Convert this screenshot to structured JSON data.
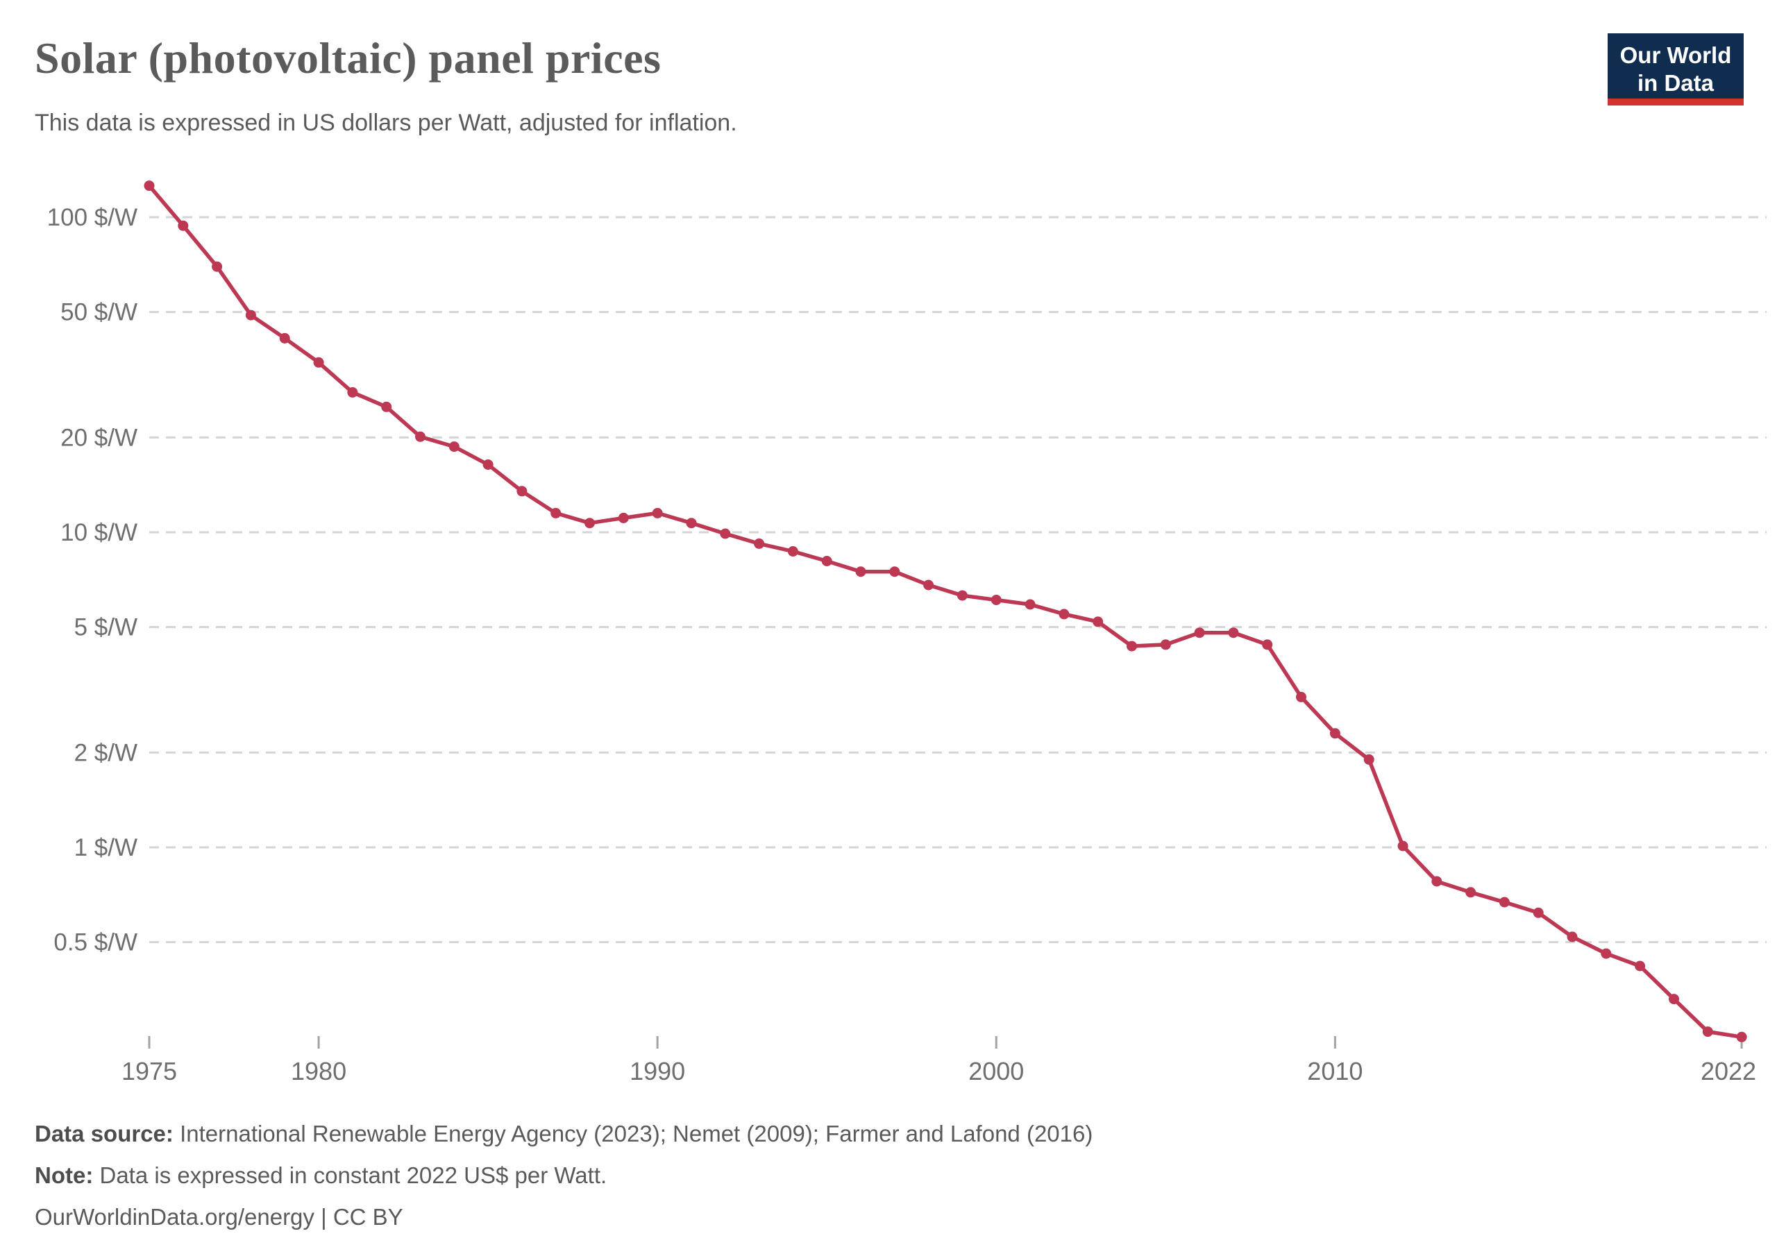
{
  "header": {
    "title": "Solar (photovoltaic) panel prices",
    "subtitle": "This data is expressed in US dollars per Watt, adjusted for inflation.",
    "logo": {
      "line1": "Our World",
      "line2": "in Data",
      "bg_color": "#102d50",
      "stripe_color": "#d0342c"
    }
  },
  "chart_data": {
    "type": "line",
    "title": "Solar (photovoltaic) panel prices",
    "ylabel": "US$ per Watt (constant 2022 US$)",
    "yscale": "log",
    "grid": "horizontal-dashed",
    "legend_position": "none",
    "xlim": [
      1975,
      2022
    ],
    "ylim": [
      0.25,
      130
    ],
    "xticks": {
      "values": [
        1975,
        1980,
        1990,
        2000,
        2010,
        2022
      ],
      "labels": [
        "1975",
        "1980",
        "1990",
        "2000",
        "2010",
        "2022"
      ]
    },
    "yticks": {
      "values": [
        100,
        50,
        20,
        10,
        5,
        2,
        1,
        0.5
      ],
      "labels": [
        "100 $/W",
        "50 $/W",
        "20 $/W",
        "10 $/W",
        "5 $/W",
        "2 $/W",
        "1 $/W",
        "0.5 $/W"
      ]
    },
    "series": [
      {
        "name": "Solar photovoltaic module price",
        "color": "#bd3853",
        "x": [
          1975,
          1976,
          1977,
          1978,
          1979,
          1980,
          1981,
          1982,
          1983,
          1984,
          1985,
          1986,
          1987,
          1988,
          1989,
          1990,
          1991,
          1992,
          1993,
          1994,
          1995,
          1996,
          1997,
          1998,
          1999,
          2000,
          2001,
          2002,
          2003,
          2004,
          2005,
          2006,
          2007,
          2008,
          2009,
          2010,
          2011,
          2012,
          2013,
          2014,
          2015,
          2016,
          2017,
          2018,
          2019,
          2020,
          2021,
          2022
        ],
        "values": [
          125.9,
          94.0,
          69.7,
          48.9,
          41.3,
          34.6,
          27.8,
          25.0,
          20.1,
          18.7,
          16.4,
          13.5,
          11.5,
          10.7,
          11.1,
          11.5,
          10.7,
          9.9,
          9.2,
          8.7,
          8.1,
          7.5,
          7.5,
          6.8,
          6.3,
          6.1,
          5.9,
          5.5,
          5.2,
          4.35,
          4.4,
          4.8,
          4.8,
          4.4,
          3.0,
          2.3,
          1.9,
          1.01,
          0.78,
          0.72,
          0.67,
          0.62,
          0.52,
          0.46,
          0.42,
          0.33,
          0.26,
          0.25
        ]
      }
    ],
    "colors": {
      "line": "#bd3853",
      "grid": "#d4d4d4",
      "tick_mark": "#a3a3a3",
      "tick_label": "#6e6e6e"
    }
  },
  "footer": {
    "source_label": "Data source:",
    "source_text": "International Renewable Energy Agency (2023); Nemet (2009); Farmer and Lafond (2016)",
    "note_label": "Note:",
    "note_text": "Data is expressed in constant 2022 US$ per Watt.",
    "attribution": "OurWorldinData.org/energy | CC BY"
  }
}
